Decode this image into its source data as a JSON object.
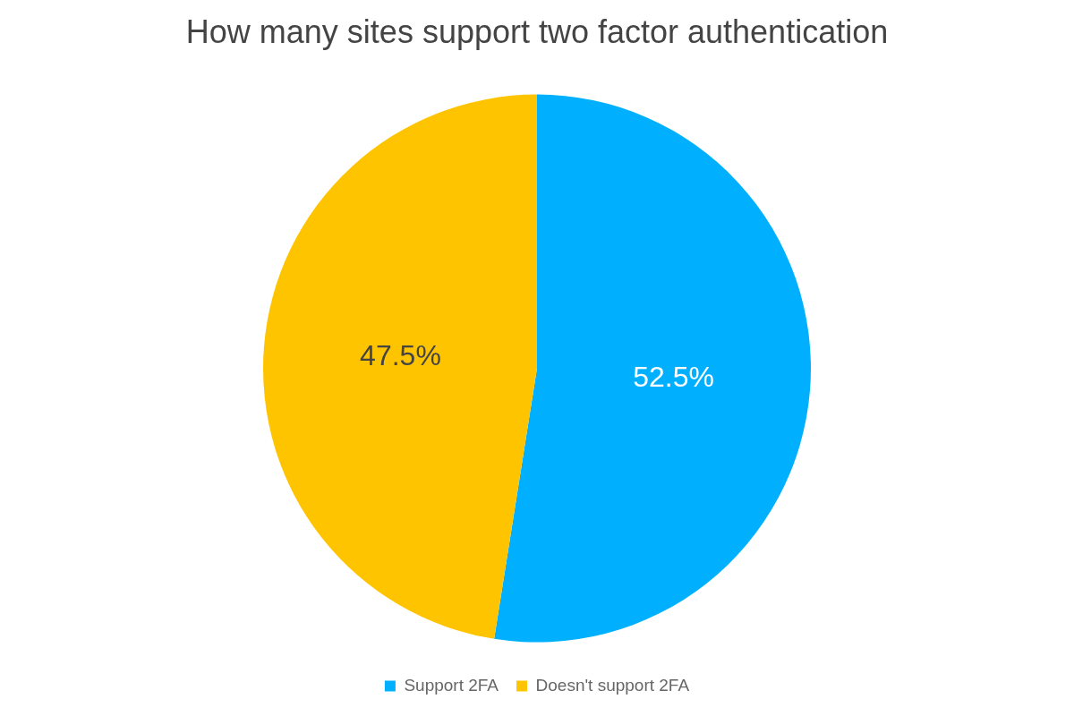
{
  "chart_data": {
    "type": "pie",
    "title": "How many sites support two factor authentication",
    "categories": [
      "Support 2FA",
      "Doesn't support 2FA"
    ],
    "values": [
      52.5,
      47.5
    ],
    "colors": [
      "#00b0ff",
      "#ffc400"
    ],
    "value_labels": [
      "52.5%",
      "47.5%"
    ],
    "legend": "bottom"
  }
}
